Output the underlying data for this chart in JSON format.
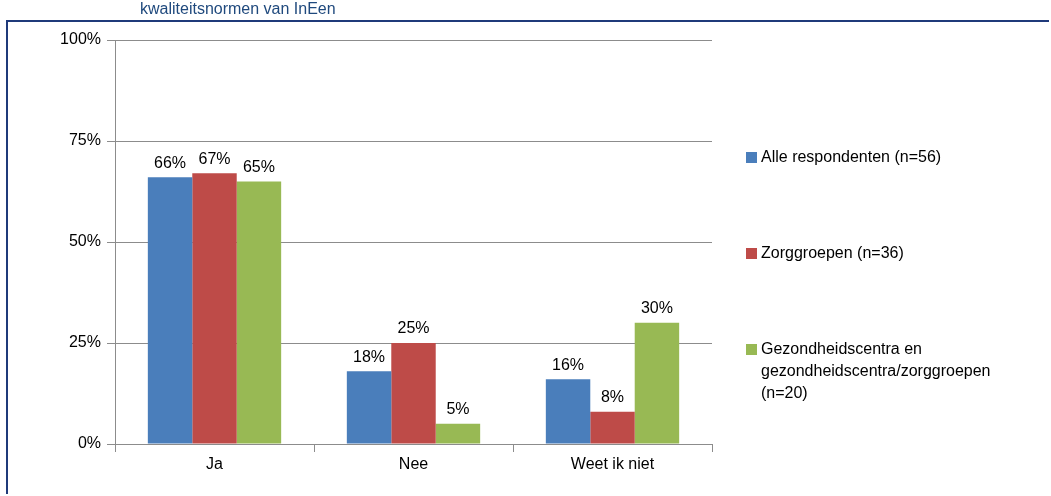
{
  "chart_data": {
    "type": "bar",
    "title": "kwaliteitsnormen van InEen",
    "categories": [
      "Ja",
      "Nee",
      "Weet ik niet"
    ],
    "series": [
      {
        "name": "Alle respondenten (n=56)",
        "color": "#4a7ebb",
        "values": [
          66,
          18,
          16
        ],
        "value_labels": [
          "66%",
          "18%",
          "16%"
        ]
      },
      {
        "name": "Zorggroepen (n=36)",
        "color": "#be4b48",
        "values": [
          67,
          25,
          8
        ],
        "value_labels": [
          "67%",
          "25%",
          "8%"
        ]
      },
      {
        "name": "Gezondheidscentra en gezondheidscentra/zorggroepen (n=20)",
        "color": "#98b954",
        "values": [
          65,
          5,
          30
        ],
        "value_labels": [
          "65%",
          "5%",
          "30%"
        ]
      }
    ],
    "ylim": [
      0,
      100
    ],
    "yticks": [
      {
        "value": 0,
        "label": "0%"
      },
      {
        "value": 25,
        "label": "25%"
      },
      {
        "value": 50,
        "label": "50%"
      },
      {
        "value": 75,
        "label": "75%"
      },
      {
        "value": 100,
        "label": "100%"
      }
    ],
    "grid": "y",
    "legend": "right"
  }
}
